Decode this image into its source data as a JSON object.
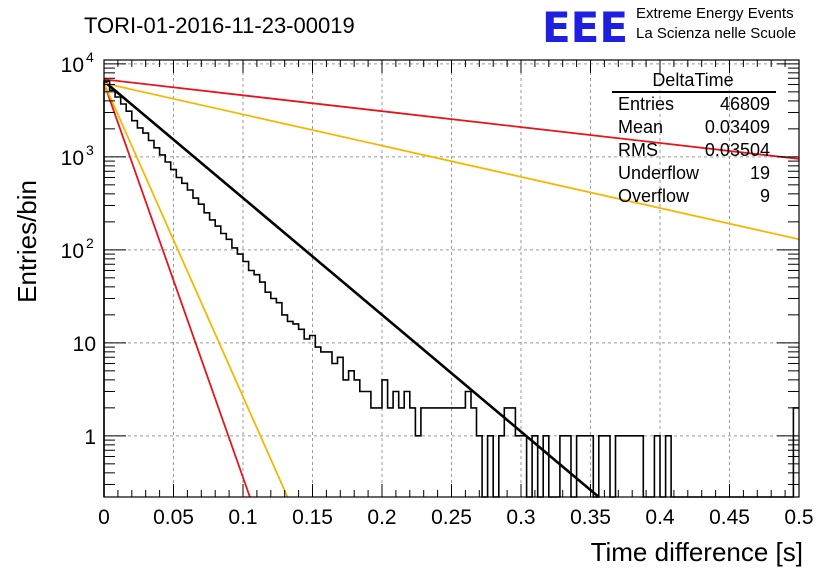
{
  "title": "TORI-01-2016-11-23-00019",
  "logo": {
    "mark": "EEE",
    "line1": "Extreme Energy Events",
    "line2": "La Scienza nelle Scuole",
    "color": "#1f1fe0"
  },
  "stats": {
    "name": "DeltaTime",
    "rows": [
      {
        "label": "Entries",
        "value": "46809"
      },
      {
        "label": "Mean",
        "value": "0.03409"
      },
      {
        "label": "RMS",
        "value": "0.03504"
      },
      {
        "label": "Underflow",
        "value": "19"
      },
      {
        "label": "Overflow",
        "value": "9"
      }
    ]
  },
  "chart_data": {
    "type": "line",
    "xlabel": "Time difference [s]",
    "ylabel": "Entries/bin",
    "xlim": [
      0,
      0.5
    ],
    "ylim": [
      0.22,
      11000
    ],
    "yscale": "log",
    "grid": true,
    "x_ticks": [
      "0",
      "0.05",
      "0.1",
      "0.15",
      "0.2",
      "0.25",
      "0.3",
      "0.35",
      "0.4",
      "0.45",
      "0.5"
    ],
    "x_tick_values": [
      0,
      0.05,
      0.1,
      0.15,
      0.2,
      0.25,
      0.3,
      0.35,
      0.4,
      0.45,
      0.5
    ],
    "y_ticks": [
      {
        "value": 1,
        "label": "1",
        "sup": ""
      },
      {
        "value": 10,
        "label": "10",
        "sup": ""
      },
      {
        "value": 100,
        "label": "10",
        "sup": "2"
      },
      {
        "value": 1000,
        "label": "10",
        "sup": "3"
      },
      {
        "value": 10000,
        "label": "10",
        "sup": "4"
      }
    ],
    "histogram": {
      "bin_width": 0.004,
      "color": "#000000",
      "values": [
        6500,
        5200,
        4400,
        3700,
        3100,
        2450,
        2050,
        1800,
        1500,
        1250,
        1050,
        880,
        730,
        600,
        520,
        440,
        360,
        310,
        250,
        210,
        180,
        150,
        130,
        105,
        90,
        75,
        60,
        54,
        45,
        35,
        30,
        27,
        20,
        17,
        16,
        14,
        11,
        12,
        9,
        8,
        8,
        6,
        7,
        4,
        5,
        4,
        3,
        3,
        2,
        2,
        4,
        2,
        3,
        2,
        3,
        2,
        1,
        2,
        2,
        2,
        2,
        2,
        2,
        2,
        2,
        3,
        2,
        1,
        0,
        1,
        0,
        1,
        2,
        2,
        1,
        1,
        0,
        1,
        0,
        1,
        0,
        0,
        1,
        1,
        0,
        1,
        1,
        1,
        0,
        1,
        1,
        0,
        1,
        1,
        1,
        1,
        1,
        0,
        0,
        1,
        0,
        1,
        0,
        0,
        0,
        0,
        0,
        0,
        0,
        0,
        0,
        0,
        0,
        0,
        0,
        0,
        0,
        0,
        0,
        0,
        0,
        0,
        0,
        0,
        2
      ]
    },
    "series": [
      {
        "color": "#000000",
        "x": [
          0,
          0.356
        ],
        "y": [
          6500,
          0.22
        ]
      },
      {
        "color": "#e8141c",
        "x": [
          0,
          0.5
        ],
        "y": [
          6800,
          950
        ]
      },
      {
        "color": "#f5b800",
        "x": [
          0,
          0.5
        ],
        "y": [
          6200,
          130
        ]
      },
      {
        "color": "#e8141c",
        "x": [
          0,
          0.105
        ],
        "y": [
          6200,
          0.22
        ]
      },
      {
        "color": "#f5b800",
        "x": [
          0,
          0.132
        ],
        "y": [
          6200,
          0.22
        ]
      }
    ]
  }
}
